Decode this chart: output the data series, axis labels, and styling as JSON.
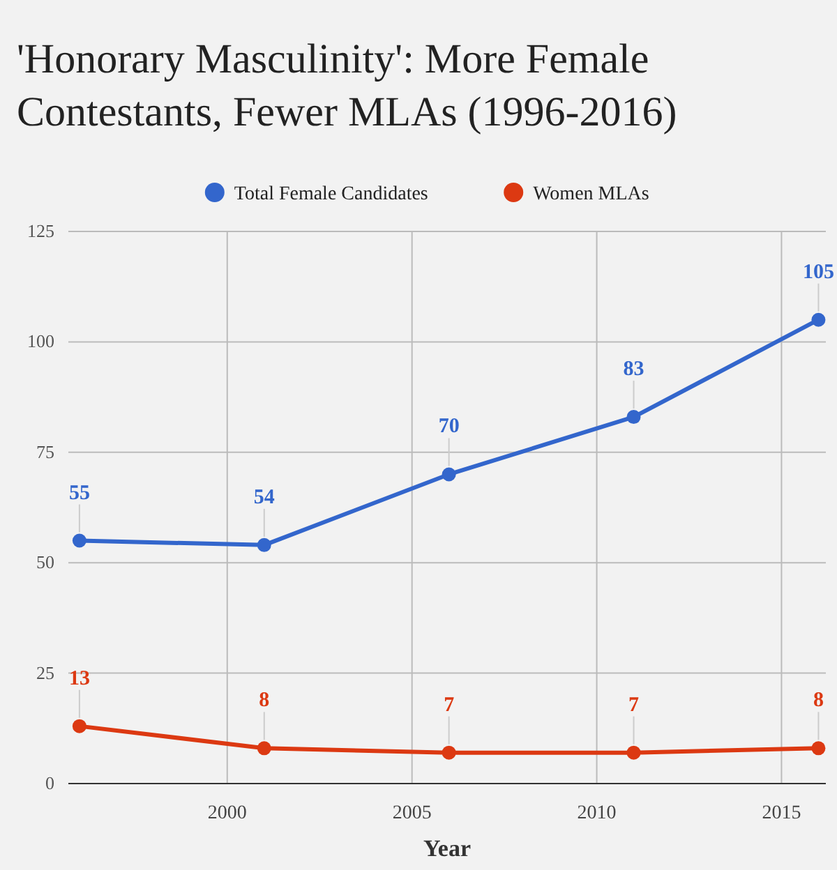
{
  "chart_data": {
    "type": "line",
    "title": "'Honorary Masculinity': More Female Contestants, Fewer MLAs (1996-2016)",
    "xlabel": "Year",
    "x": [
      1996,
      2001,
      2006,
      2011,
      2016
    ],
    "series": [
      {
        "name": "Total Female Candidates",
        "color": "#3366cc",
        "values": [
          55,
          54,
          70,
          83,
          105
        ]
      },
      {
        "name": "Women MLAs",
        "color": "#dc3912",
        "values": [
          13,
          8,
          7,
          7,
          8
        ]
      }
    ],
    "xlim": [
      1995.7,
      2016.2
    ],
    "xticks": [
      2000,
      2005,
      2010,
      2015
    ],
    "ylim": [
      0,
      125
    ],
    "yticks": [
      0,
      25,
      50,
      75,
      100,
      125
    ],
    "grid": true,
    "legend": "top",
    "marker": "circle",
    "line_style": "solid",
    "data_labels": true
  }
}
